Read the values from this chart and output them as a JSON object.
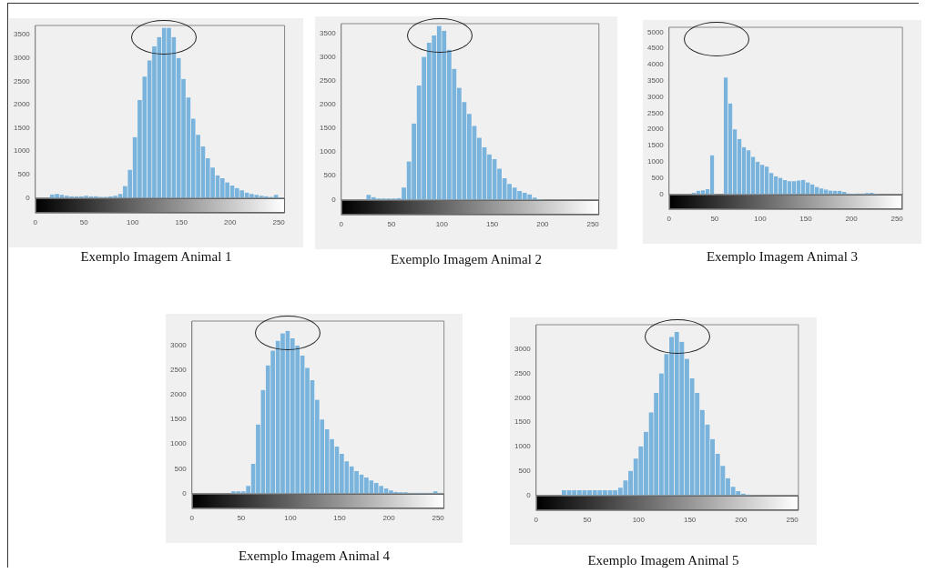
{
  "chart_data": [
    {
      "type": "histogram",
      "title": "Exemplo Imagem Animal 1",
      "color": "#7ab4dc",
      "bins": [
        0,
        5,
        10,
        15,
        20,
        25,
        30,
        35,
        40,
        45,
        50,
        55,
        60,
        65,
        70,
        75,
        80,
        85,
        90,
        95,
        100,
        105,
        110,
        115,
        120,
        125,
        130,
        135,
        140,
        145,
        150,
        155,
        160,
        165,
        170,
        175,
        180,
        185,
        190,
        195,
        200,
        205,
        210,
        215,
        220,
        225,
        230,
        235,
        240,
        245,
        250,
        255
      ],
      "values": [
        0,
        0,
        0,
        70,
        80,
        60,
        40,
        30,
        30,
        30,
        40,
        30,
        30,
        20,
        20,
        30,
        40,
        80,
        250,
        600,
        1300,
        2100,
        2600,
        2950,
        3250,
        3450,
        3650,
        3650,
        3450,
        3000,
        2550,
        2150,
        1700,
        1350,
        1100,
        850,
        650,
        480,
        420,
        330,
        260,
        210,
        160,
        110,
        80,
        60,
        40,
        30,
        20,
        60,
        10
      ],
      "xlim": [
        0,
        256
      ],
      "xticks": [
        0,
        50,
        100,
        150,
        200,
        250
      ],
      "ylim": [
        0,
        3700
      ],
      "yticks": [
        0,
        500,
        1000,
        1500,
        2000,
        2500,
        3000,
        3500
      ],
      "grid": false,
      "legend": false
    },
    {
      "type": "histogram",
      "title": "Exemplo Imagem Animal 2",
      "color": "#7ab4dc",
      "bins": [
        0,
        5,
        10,
        15,
        20,
        25,
        30,
        35,
        40,
        45,
        50,
        55,
        60,
        65,
        70,
        75,
        80,
        85,
        90,
        95,
        100,
        105,
        110,
        115,
        120,
        125,
        130,
        135,
        140,
        145,
        150,
        155,
        160,
        165,
        170,
        175,
        180,
        185,
        190,
        195,
        200,
        205,
        210,
        215,
        220,
        225,
        230,
        235,
        240,
        245,
        250,
        255
      ],
      "values": [
        0,
        0,
        0,
        0,
        0,
        100,
        50,
        20,
        20,
        20,
        20,
        30,
        250,
        800,
        1600,
        2400,
        3000,
        3300,
        3450,
        3650,
        3550,
        3150,
        2750,
        2350,
        2050,
        1800,
        1550,
        1300,
        1100,
        950,
        850,
        650,
        450,
        330,
        250,
        180,
        140,
        110,
        40,
        10,
        0,
        0,
        0,
        0,
        0,
        0,
        0,
        0,
        0,
        0,
        0
      ],
      "xlim": [
        0,
        256
      ],
      "xticks": [
        0,
        50,
        100,
        150,
        200,
        250
      ],
      "ylim": [
        0,
        3700
      ],
      "yticks": [
        0,
        500,
        1000,
        1500,
        2000,
        2500,
        3000,
        3500
      ],
      "grid": false,
      "legend": false
    },
    {
      "type": "histogram",
      "title": "Exemplo Imagem Animal 3",
      "color": "#7ab4dc",
      "bins": [
        0,
        5,
        10,
        15,
        20,
        25,
        30,
        35,
        40,
        45,
        50,
        55,
        60,
        65,
        70,
        75,
        80,
        85,
        90,
        95,
        100,
        105,
        110,
        115,
        120,
        125,
        130,
        135,
        140,
        145,
        150,
        155,
        160,
        165,
        170,
        175,
        180,
        185,
        190,
        195,
        200,
        205,
        210,
        215,
        220,
        225,
        230,
        235,
        240,
        245,
        250,
        255
      ],
      "values": [
        0,
        0,
        0,
        0,
        0,
        40,
        100,
        120,
        150,
        1200,
        null,
        null,
        3600,
        2800,
        2000,
        1700,
        1450,
        1350,
        1150,
        1000,
        900,
        850,
        650,
        550,
        500,
        430,
        400,
        400,
        420,
        440,
        360,
        300,
        220,
        170,
        140,
        110,
        100,
        100,
        70,
        20,
        10,
        20,
        20,
        30,
        40,
        10,
        0,
        0,
        0,
        0,
        0
      ],
      "xlim": [
        0,
        256
      ],
      "xticks": [
        0,
        50,
        100,
        150,
        200,
        250
      ],
      "ylim": [
        0,
        5150
      ],
      "yticks": [
        0,
        500,
        1000,
        1500,
        2000,
        2500,
        3000,
        3500,
        4000,
        4500,
        5000
      ],
      "grid": false,
      "legend": false
    },
    {
      "type": "histogram",
      "title": "Exemplo Imagem Animal 4",
      "color": "#7ab4dc",
      "bins": [
        0,
        5,
        10,
        15,
        20,
        25,
        30,
        35,
        40,
        45,
        50,
        55,
        60,
        65,
        70,
        75,
        80,
        85,
        90,
        95,
        100,
        105,
        110,
        115,
        120,
        125,
        130,
        135,
        140,
        145,
        150,
        155,
        160,
        165,
        170,
        175,
        180,
        185,
        190,
        195,
        200,
        205,
        210,
        215,
        220,
        225,
        230,
        235,
        240,
        245,
        250,
        255
      ],
      "values": [
        0,
        0,
        0,
        0,
        0,
        0,
        0,
        0,
        40,
        40,
        40,
        150,
        600,
        1400,
        2100,
        2600,
        2900,
        3100,
        3250,
        3300,
        3150,
        3000,
        2800,
        2550,
        2300,
        1900,
        1500,
        1300,
        1100,
        950,
        800,
        650,
        550,
        450,
        380,
        320,
        260,
        210,
        150,
        100,
        60,
        30,
        20,
        20,
        10,
        10,
        10,
        10,
        10,
        40,
        10
      ],
      "xlim": [
        0,
        256
      ],
      "xticks": [
        0,
        50,
        100,
        150,
        200,
        250
      ],
      "ylim": [
        0,
        3500
      ],
      "yticks": [
        0,
        500,
        1000,
        1500,
        2000,
        2500,
        3000
      ],
      "grid": false,
      "legend": false
    },
    {
      "type": "histogram",
      "title": "Exemplo Imagem Animal 5",
      "color": "#7ab4dc",
      "bins": [
        0,
        5,
        10,
        15,
        20,
        25,
        30,
        35,
        40,
        45,
        50,
        55,
        60,
        65,
        70,
        75,
        80,
        85,
        90,
        95,
        100,
        105,
        110,
        115,
        120,
        125,
        130,
        135,
        140,
        145,
        150,
        155,
        160,
        165,
        170,
        175,
        180,
        185,
        190,
        195,
        200,
        205,
        210,
        215,
        220,
        225,
        230,
        235,
        240,
        245,
        250,
        255
      ],
      "values": [
        0,
        0,
        0,
        0,
        0,
        100,
        100,
        100,
        100,
        100,
        100,
        100,
        100,
        100,
        100,
        100,
        150,
        300,
        500,
        750,
        1000,
        1300,
        1700,
        2100,
        2500,
        2900,
        3250,
        3350,
        3150,
        2800,
        2400,
        2100,
        1750,
        1450,
        1150,
        850,
        600,
        350,
        170,
        80,
        30,
        10,
        0,
        0,
        0,
        0,
        0,
        0,
        0,
        0,
        0
      ],
      "xlim": [
        0,
        256
      ],
      "xticks": [
        0,
        50,
        100,
        150,
        200,
        250
      ],
      "ylim": [
        0,
        3500
      ],
      "yticks": [
        0,
        500,
        1000,
        1500,
        2000,
        2500,
        3000
      ],
      "grid": false,
      "legend": false
    }
  ]
}
